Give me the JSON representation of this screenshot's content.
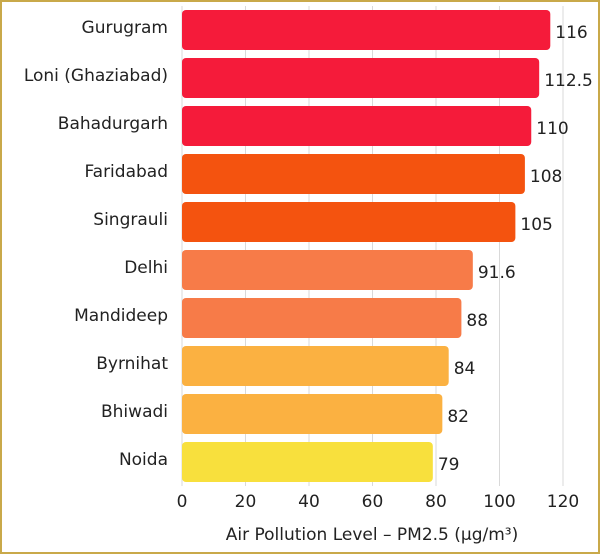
{
  "chart_data": {
    "type": "bar",
    "orientation": "horizontal",
    "x_label": "Air Pollution Level – PM2.5 (µg/m³)",
    "categories": [
      "Gurugram",
      "Loni (Ghaziabad)",
      "Bahadurgarh",
      "Faridabad",
      "Singrauli",
      "Delhi",
      "Mandideep",
      "Byrnihat",
      "Bhiwadi",
      "Noida"
    ],
    "values": [
      116,
      112.5,
      110,
      108,
      105,
      91.6,
      88,
      84,
      82,
      79
    ],
    "colors": [
      "#f51b3a",
      "#f51b3a",
      "#f51b3a",
      "#f4530f",
      "#f4530f",
      "#f77b48",
      "#f77b48",
      "#fbb141",
      "#fbb141",
      "#f8e03d"
    ],
    "xlim": [
      0,
      120
    ],
    "xticks": [
      0,
      20,
      40,
      60,
      80,
      100,
      120
    ],
    "grid": true
  }
}
